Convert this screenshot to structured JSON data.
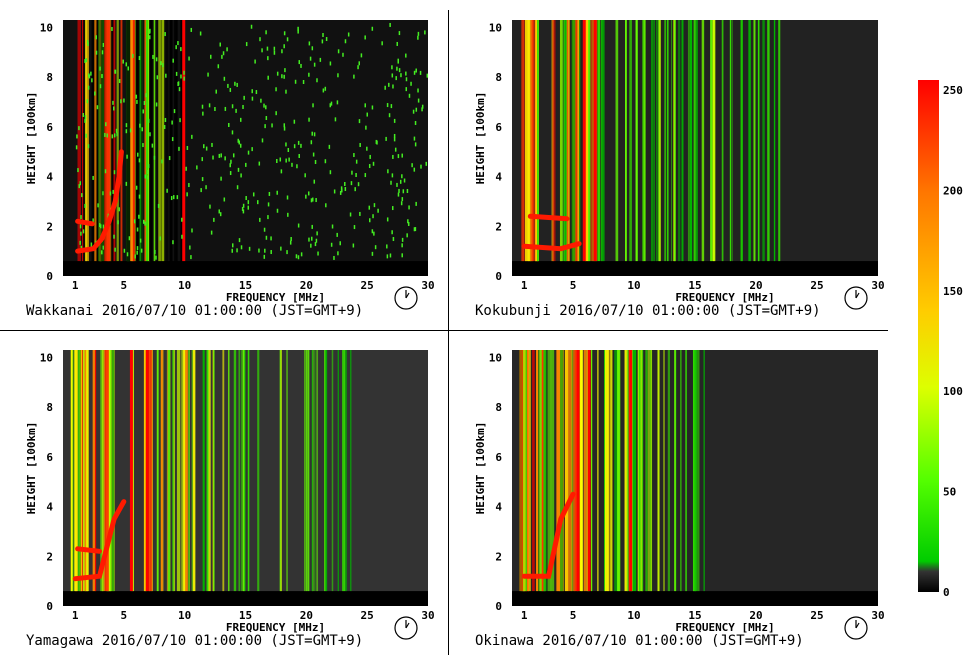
{
  "chart_data": [
    {
      "type": "heatmap",
      "station": "Wakkanai",
      "caption": "Wakkanai 2016/07/10 01:00:00 (JST=GMT+9)",
      "xlabel": "FREQUENCY [MHz]",
      "ylabel": "HEIGHT [100km]",
      "xlim": [
        0,
        30
      ],
      "ylim": [
        0,
        10.3
      ],
      "x_ticks": [
        1,
        5,
        10,
        15,
        20,
        25,
        30
      ],
      "y_ticks": [
        0,
        2,
        4,
        6,
        8,
        10
      ],
      "background": "#111111",
      "traces": [
        {
          "name": "trace-o",
          "points": [
            [
              1.2,
              1.0
            ],
            [
              2.5,
              1.1
            ],
            [
              3.2,
              1.5
            ],
            [
              3.8,
              2.2
            ],
            [
              4.3,
              3.0
            ],
            [
              4.6,
              4.0
            ],
            [
              4.8,
              5.0
            ]
          ]
        },
        {
          "name": "trace-echo",
          "points": [
            [
              1.2,
              2.2
            ],
            [
              2.4,
              2.1
            ]
          ]
        }
      ]
    },
    {
      "type": "heatmap",
      "station": "Kokubunji",
      "caption": "Kokubunji 2016/07/10 01:00:00 (JST=GMT+9)",
      "xlabel": "FREQUENCY [MHz]",
      "ylabel": "HEIGHT [100km]",
      "xlim": [
        0,
        30
      ],
      "ylim": [
        0,
        10.3
      ],
      "x_ticks": [
        1,
        5,
        10,
        15,
        20,
        25,
        30
      ],
      "y_ticks": [
        0,
        2,
        4,
        6,
        8,
        10
      ],
      "background": "#222222",
      "traces": [
        {
          "name": "trace-o",
          "points": [
            [
              1.0,
              1.2
            ],
            [
              4.0,
              1.1
            ],
            [
              5.5,
              1.3
            ]
          ]
        },
        {
          "name": "trace-echo",
          "points": [
            [
              1.5,
              2.4
            ],
            [
              4.5,
              2.3
            ]
          ]
        }
      ]
    },
    {
      "type": "heatmap",
      "station": "Yamagawa",
      "caption": "Yamagawa 2016/07/10 01:00:00 (JST=GMT+9)",
      "xlabel": "FREQUENCY [MHz]",
      "ylabel": "HEIGHT [100km]",
      "xlim": [
        0,
        30
      ],
      "ylim": [
        0,
        10.3
      ],
      "x_ticks": [
        1,
        5,
        10,
        15,
        20,
        25,
        30
      ],
      "y_ticks": [
        0,
        2,
        4,
        6,
        8,
        10
      ],
      "background": "#333333",
      "traces": [
        {
          "name": "trace-o",
          "points": [
            [
              1.0,
              1.1
            ],
            [
              3.0,
              1.2
            ],
            [
              4.2,
              3.5
            ],
            [
              5.0,
              4.2
            ]
          ]
        },
        {
          "name": "trace-echo",
          "points": [
            [
              1.2,
              2.3
            ],
            [
              3.0,
              2.2
            ]
          ]
        }
      ]
    },
    {
      "type": "heatmap",
      "station": "Okinawa",
      "caption": "Okinawa 2016/07/10 01:00:00 (JST=GMT+9)",
      "xlabel": "FREQUENCY [MHz]",
      "ylabel": "HEIGHT [100km]",
      "xlim": [
        0,
        30
      ],
      "ylim": [
        0,
        10.3
      ],
      "x_ticks": [
        1,
        5,
        10,
        15,
        20,
        25,
        30
      ],
      "y_ticks": [
        0,
        2,
        4,
        6,
        8,
        10
      ],
      "background": "#262626",
      "traces": [
        {
          "name": "trace-o",
          "points": [
            [
              1.0,
              1.2
            ],
            [
              3.0,
              1.2
            ],
            [
              4.0,
              3.5
            ],
            [
              5.0,
              4.5
            ]
          ]
        }
      ]
    }
  ],
  "colorbar": {
    "min": 0,
    "max": 255,
    "tick_labels": [
      "250",
      "200",
      "150",
      "100",
      "50",
      "0"
    ],
    "tick_values": [
      250,
      200,
      150,
      100,
      50,
      0
    ],
    "colors": [
      "#000000",
      "#555555",
      "#00cc00",
      "#55ff00",
      "#ffff00",
      "#ff8800",
      "#ff0000"
    ]
  }
}
